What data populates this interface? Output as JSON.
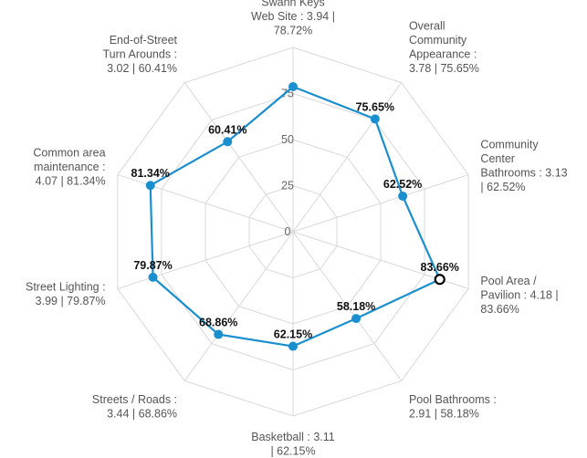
{
  "chart_data": {
    "type": "radar",
    "radial_ticks": [
      "0",
      "25",
      "50",
      "75"
    ],
    "rmax": 100,
    "grid": true,
    "colors": {
      "series": "#1a8fd0",
      "grid": "#d9d9d9",
      "highlight_marker_stroke": "#000000"
    },
    "axes": [
      {
        "label_lines": [
          "Swann Keys",
          "Web Site  : 3.94 |",
          "78.72%"
        ],
        "value": 78.72,
        "data_label": ""
      },
      {
        "label_lines": [
          "Overall",
          "Community",
          "Appearance :",
          "3.78 | 75.65%"
        ],
        "value": 75.65,
        "data_label": "75.65%"
      },
      {
        "label_lines": [
          "Community",
          "Center",
          "Bathrooms : 3.13",
          "| 62.52%"
        ],
        "value": 62.52,
        "data_label": "62.52%"
      },
      {
        "label_lines": [
          "Pool Area /",
          "Pavilion : 4.18 |",
          "83.66%"
        ],
        "value": 83.66,
        "data_label": "83.66%",
        "highlight": true
      },
      {
        "label_lines": [
          "Pool Bathrooms :",
          "2.91 | 58.18%"
        ],
        "value": 58.18,
        "data_label": "58.18%"
      },
      {
        "label_lines": [
          "Basketball  : 3.11",
          "| 62.15%"
        ],
        "value": 62.15,
        "data_label": "62.15%"
      },
      {
        "label_lines": [
          "Streets / Roads  :",
          "3.44 | 68.86%"
        ],
        "value": 68.86,
        "data_label": "68.86%"
      },
      {
        "label_lines": [
          "Street Lighting  :",
          "3.99 | 79.87%"
        ],
        "value": 79.87,
        "data_label": "79.87%"
      },
      {
        "label_lines": [
          "Common area",
          "maintenance  :",
          "4.07 | 81.34%"
        ],
        "value": 81.34,
        "data_label": "81.34%"
      },
      {
        "label_lines": [
          "End-of-Street",
          "Turn Arounds :",
          "3.02 | 60.41%"
        ],
        "value": 60.41,
        "data_label": "60.41%"
      }
    ]
  }
}
